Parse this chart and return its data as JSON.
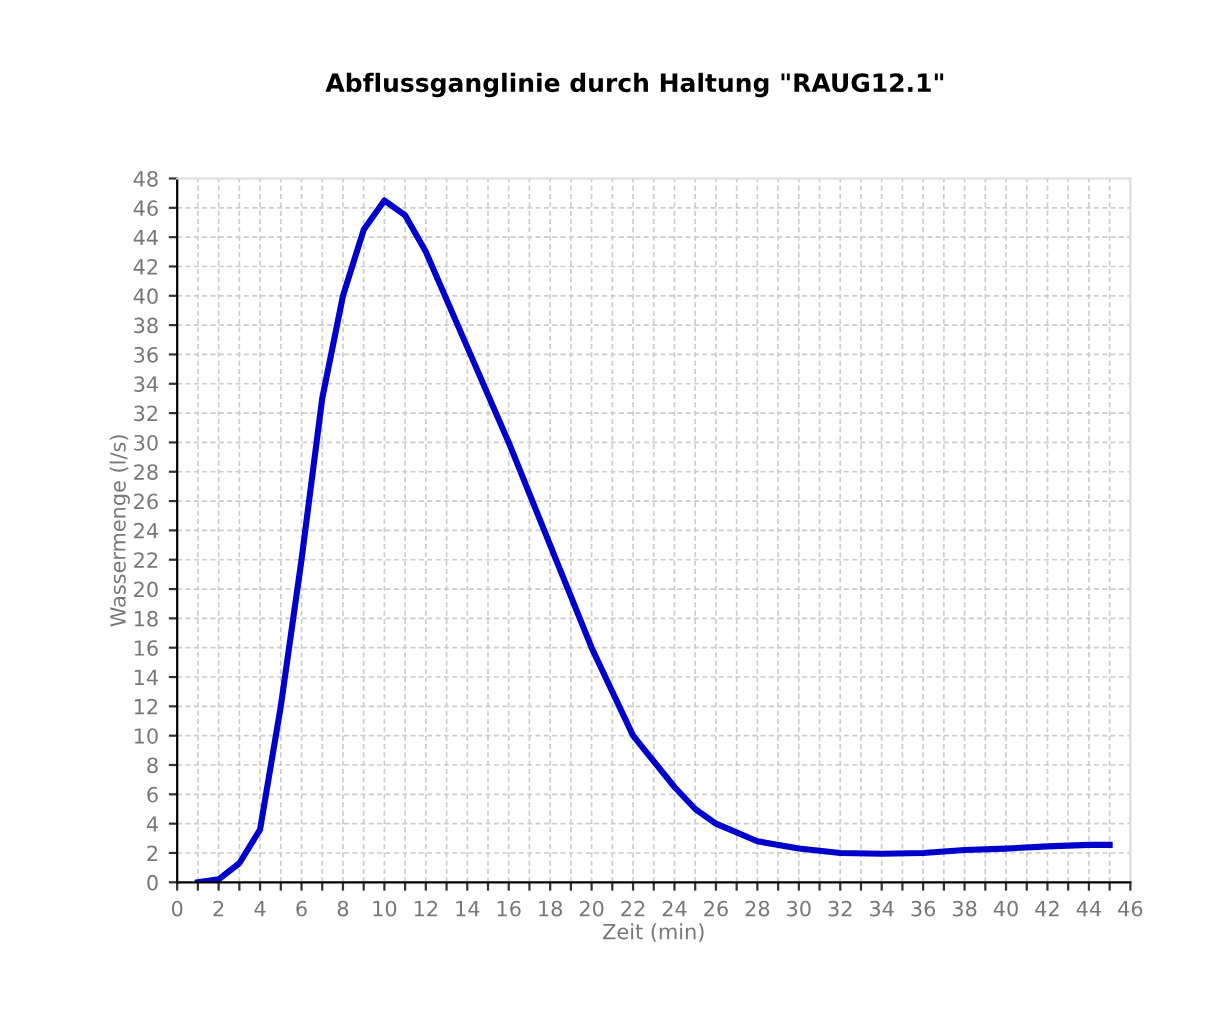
{
  "chart_data": {
    "type": "line",
    "title": "Abflussganglinie durch Haltung \"RAUG12.1\"",
    "xlabel": "Zeit (min)",
    "ylabel": "Wassermenge (l/s)",
    "series": [
      {
        "color": "#0000cc",
        "x": [
          1,
          2,
          3,
          4,
          5,
          6,
          7,
          8,
          9,
          10,
          11,
          12,
          14,
          16,
          18,
          20,
          22,
          24,
          25,
          26,
          28,
          30,
          32,
          34,
          36,
          38,
          40,
          42,
          44,
          45
        ],
        "values": [
          0,
          0.2,
          1.3,
          3.6,
          12,
          22,
          33,
          40,
          44.5,
          46.5,
          45.5,
          43,
          36.5,
          30,
          23,
          16,
          10,
          6.5,
          5,
          4,
          2.8,
          2.3,
          2.0,
          1.95,
          2.0,
          2.2,
          2.3,
          2.45,
          2.55,
          2.55
        ]
      }
    ],
    "xlim": [
      0,
      46
    ],
    "ylim": [
      0,
      48
    ],
    "xticks": [
      0,
      {
        "value": 1,
        "label": null
      },
      2,
      {
        "value": 3,
        "label": null
      },
      4,
      {
        "value": 5,
        "label": null
      },
      6,
      {
        "value": 7,
        "label": null
      },
      8,
      {
        "value": 9,
        "label": null
      },
      10,
      {
        "value": 11,
        "label": null
      },
      12,
      {
        "value": 13,
        "label": null
      },
      14,
      {
        "value": 15,
        "label": null
      },
      16,
      {
        "value": 17,
        "label": null
      },
      18,
      {
        "value": 19,
        "label": null
      },
      20,
      {
        "value": 21,
        "label": null
      },
      22,
      {
        "value": 23,
        "label": null
      },
      24,
      {
        "value": 25,
        "label": null
      },
      26,
      {
        "value": 27,
        "label": null
      },
      28,
      {
        "value": 29,
        "label": null
      },
      30,
      {
        "value": 31,
        "label": null
      },
      32,
      {
        "value": 33,
        "label": null
      },
      34,
      {
        "value": 35,
        "label": null
      },
      36,
      {
        "value": 37,
        "label": null
      },
      38,
      {
        "value": 39,
        "label": null
      },
      40,
      {
        "value": 41,
        "label": null
      },
      42,
      {
        "value": 43,
        "label": null
      },
      44,
      {
        "value": 45,
        "label": null
      },
      46
    ],
    "yticks": [
      0,
      2,
      4,
      6,
      8,
      10,
      12,
      14,
      16,
      18,
      20,
      22,
      24,
      26,
      28,
      30,
      32,
      34,
      36,
      38,
      40,
      42,
      44,
      46,
      48
    ],
    "grid": true,
    "legend": false,
    "marker": "none",
    "line_style": "solid"
  }
}
